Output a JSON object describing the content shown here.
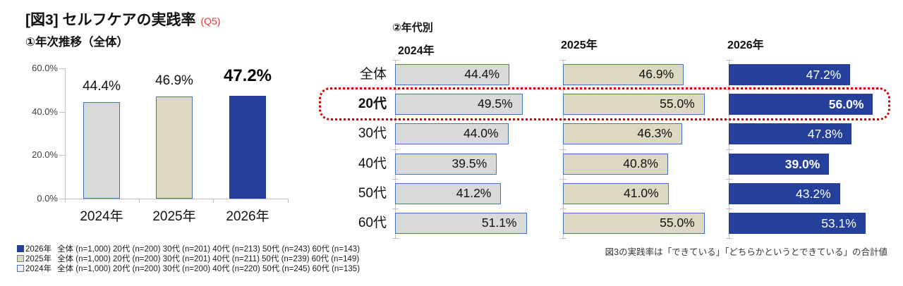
{
  "title": {
    "text": "[図3] セルフケアの実践率",
    "tag": "(Q5)"
  },
  "left_chart": {
    "subtitle": "①年次推移（全体）",
    "y_ticks": [
      "60.0%",
      "40.0%",
      "20.0%",
      "0.0%"
    ],
    "categories": [
      "2024年",
      "2025年",
      "2026年"
    ],
    "values": [
      44.4,
      46.9,
      47.2
    ],
    "labels": [
      "44.4%",
      "46.9%",
      "47.2%"
    ]
  },
  "age_table": {
    "subtitle": "②年代別",
    "columns": [
      "2024年",
      "2025年",
      "2026年"
    ],
    "rows": [
      {
        "label": "全体",
        "values": [
          44.4,
          46.9,
          47.2
        ],
        "labels": [
          "44.4%",
          "46.9%",
          "47.2%"
        ],
        "highlight": false,
        "bold_label": false,
        "bold_values": [
          false,
          false,
          false
        ]
      },
      {
        "label": "20代",
        "values": [
          49.5,
          55.0,
          56.0
        ],
        "labels": [
          "49.5%",
          "55.0%",
          "56.0%"
        ],
        "highlight": true,
        "bold_label": true,
        "bold_values": [
          false,
          false,
          true
        ]
      },
      {
        "label": "30代",
        "values": [
          44.0,
          46.3,
          47.8
        ],
        "labels": [
          "44.0%",
          "46.3%",
          "47.8%"
        ],
        "highlight": false,
        "bold_label": false,
        "bold_values": [
          false,
          false,
          false
        ]
      },
      {
        "label": "40代",
        "values": [
          39.5,
          40.8,
          39.0
        ],
        "labels": [
          "39.5%",
          "40.8%",
          "39.0%"
        ],
        "highlight": false,
        "bold_label": false,
        "bold_values": [
          false,
          false,
          true
        ]
      },
      {
        "label": "50代",
        "values": [
          41.2,
          41.0,
          43.2
        ],
        "labels": [
          "41.2%",
          "41.0%",
          "43.2%"
        ],
        "highlight": false,
        "bold_label": false,
        "bold_values": [
          false,
          false,
          false
        ]
      },
      {
        "label": "60代",
        "values": [
          51.1,
          55.0,
          53.1
        ],
        "labels": [
          "51.1%",
          "55.0%",
          "53.1%"
        ],
        "highlight": false,
        "bold_label": false,
        "bold_values": [
          false,
          false,
          false
        ]
      }
    ]
  },
  "legend": [
    {
      "key": "2026",
      "year": "2026年",
      "text": "全体 (n=1,000) 20代 (n=200) 30代 (n=201) 40代 (n=213) 50代 (n=243) 60代 (n=143)"
    },
    {
      "key": "2025",
      "year": "2025年",
      "text": "全体 (n=1,000) 20代 (n=200) 30代 (n=201) 40代 (n=211) 50代 (n=239) 60代 (n=149)"
    },
    {
      "key": "2024",
      "year": "2024年",
      "text": "全体 (n=1,000) 20代 (n=200) 30代 (n=200) 40代 (n=220) 50代 (n=245) 60代 (n=135)"
    }
  ],
  "note": "図3の実践率は「できている」「どちらかというとできている」の合計値",
  "colors": {
    "year_2024": "#D9D9D9",
    "year_2025": "#DDD8C2",
    "year_2026": "#24409B",
    "bar_border": "#4472C4",
    "highlight_border": "#CC0000",
    "tag_red": "#E03C3C",
    "axis_gray": "#BFBFBF"
  },
  "chart_data": [
    {
      "type": "bar",
      "title": "①年次推移（全体）",
      "categories": [
        "2024年",
        "2025年",
        "2026年"
      ],
      "values": [
        44.4,
        46.9,
        47.2
      ],
      "data_labels": [
        "44.4%",
        "46.9%",
        "47.2%"
      ],
      "xlabel": "",
      "ylabel": "",
      "ylim": [
        0,
        60
      ],
      "y_tick_labels": [
        "0.0%",
        "20.0%",
        "40.0%",
        "60.0%"
      ],
      "grid": false,
      "bar_colors": [
        "#D9D9D9",
        "#DDD8C2",
        "#24409B"
      ]
    },
    {
      "type": "bar",
      "orientation": "horizontal",
      "title": "②年代別",
      "categories": [
        "全体",
        "20代",
        "30代",
        "40代",
        "50代",
        "60代"
      ],
      "series": [
        {
          "name": "2024年",
          "values": [
            44.4,
            49.5,
            44.0,
            39.5,
            41.2,
            51.1
          ],
          "color": "#D9D9D9"
        },
        {
          "name": "2025年",
          "values": [
            46.9,
            55.0,
            46.3,
            40.8,
            41.0,
            55.0
          ],
          "color": "#DDD8C2"
        },
        {
          "name": "2026年",
          "values": [
            47.2,
            56.0,
            47.8,
            39.0,
            43.2,
            53.1
          ],
          "color": "#24409B"
        }
      ],
      "xlim": [
        0,
        60
      ],
      "grid": false,
      "highlighted_category": "20代",
      "legend_position": "bottom-left"
    }
  ]
}
